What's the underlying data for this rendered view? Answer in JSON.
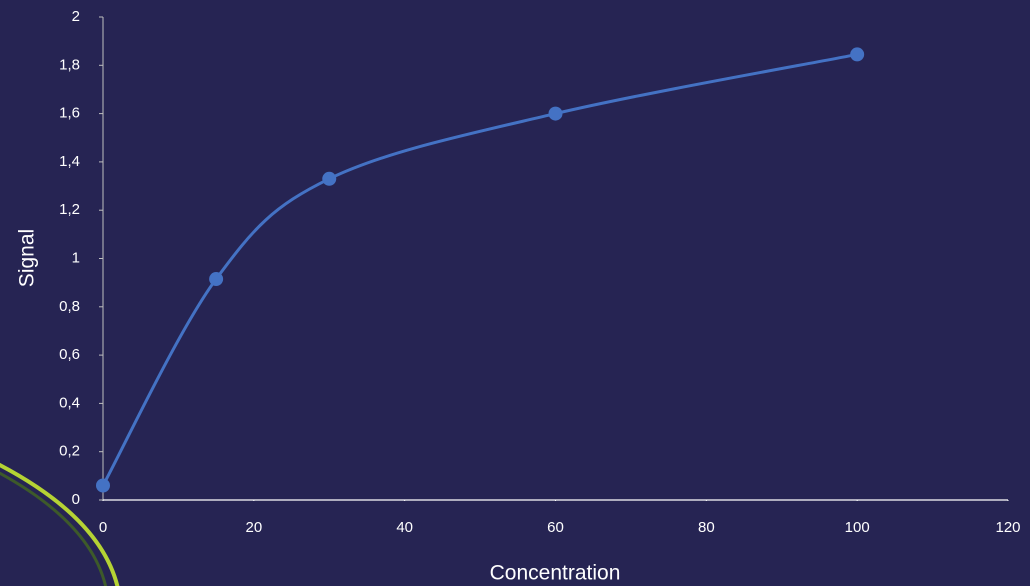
{
  "chart_data": {
    "type": "scatter",
    "line": "smooth",
    "x_label": "Concentration",
    "y_label": "Signal",
    "x": [
      0,
      15,
      30,
      60,
      100
    ],
    "values": [
      0.06,
      0.915,
      1.33,
      1.6,
      1.845
    ],
    "color": "#4472c4",
    "xlim": [
      0,
      120
    ],
    "xticks": [
      0,
      20,
      40,
      60,
      80,
      100,
      120
    ],
    "ylim": [
      0,
      2
    ],
    "yticks": [
      0,
      {
        "value": 0.2,
        "label": "0,2"
      },
      {
        "value": 0.4,
        "label": "0,4"
      },
      {
        "value": 0.6,
        "label": "0,6"
      },
      {
        "value": 0.8,
        "label": "0,8"
      },
      1,
      {
        "value": 1.2,
        "label": "1,2"
      },
      {
        "value": 1.4,
        "label": "1,4"
      },
      {
        "value": 1.6,
        "label": "1,6"
      },
      {
        "value": 1.8,
        "label": "1,8"
      },
      2
    ],
    "grid": false
  }
}
